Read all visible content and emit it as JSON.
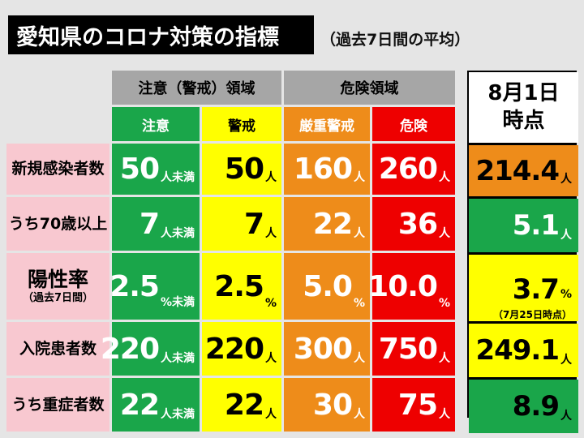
{
  "title": "愛知県のコロナ対策の指標",
  "subtitle": "（過去7日間の平均）",
  "group_heads": {
    "caution": "注意（警戒）領域",
    "danger": "危険領域"
  },
  "columns": {
    "c1": "注意",
    "c2": "警戒",
    "c3": "厳重警戒",
    "c4": "危険"
  },
  "date_head": {
    "line1": "8月1日",
    "line2": "時点"
  },
  "rows": [
    {
      "label": "新規感染者数",
      "v1": "50",
      "u1": "人未満",
      "v2": "50",
      "u2": "人",
      "v3": "160",
      "u3": "人",
      "v4": "260",
      "u4": "人",
      "cur": "214.4",
      "cu": "人"
    },
    {
      "label": "うち70歳以上",
      "v1": "7",
      "u1": "人未満",
      "v2": "7",
      "u2": "人",
      "v3": "22",
      "u3": "人",
      "v4": "36",
      "u4": "人",
      "cur": "5.1",
      "cu": "人"
    },
    {
      "label": "陽性率",
      "sublabel": "（過去7日間）",
      "v1": "2.5",
      "u1": "%未満",
      "v2": "2.5",
      "u2": "%",
      "v3": "5.0",
      "u3": "%",
      "v4": "10.0",
      "u4": "%",
      "cur": "3.7",
      "cu": "%",
      "note": "（7月25日時点）"
    },
    {
      "label": "入院患者数",
      "v1": "220",
      "u1": "人未満",
      "v2": "220",
      "u2": "人",
      "v3": "300",
      "u3": "人",
      "v4": "750",
      "u4": "人",
      "cur": "249.1",
      "cu": "人"
    },
    {
      "label": "うち重症者数",
      "v1": "22",
      "u1": "人未満",
      "v2": "22",
      "u2": "人",
      "v3": "30",
      "u3": "人",
      "v4": "75",
      "u4": "人",
      "cur": "8.9",
      "cu": "人"
    }
  ],
  "colors": {
    "green": "#1aa64a",
    "yellow": "#ffff00",
    "orange": "#ee8c1a",
    "red": "#ee0000",
    "pink": "#f8c8d0",
    "gray": "#a6a6a6"
  }
}
